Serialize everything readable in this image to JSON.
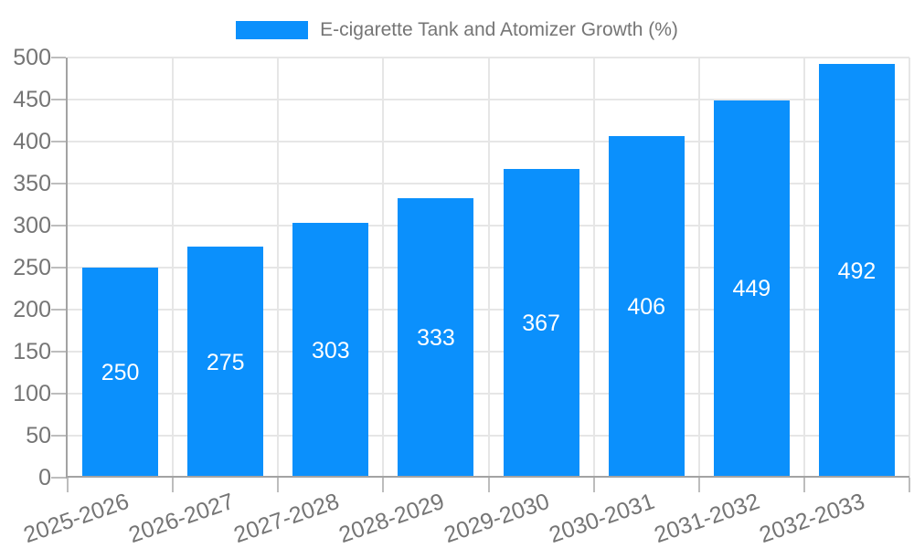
{
  "colors": {
    "bar": "#0B90FC",
    "grid": "#E6E6E6",
    "axis": "#A3A3A3",
    "tick": "#BDBDBD",
    "tick_label_text": "#757575",
    "legend_text": "#757575",
    "value_label_text": "#FFFFFF",
    "background": "#FFFFFF"
  },
  "chart_data": {
    "type": "bar",
    "title": "E-cigarette Tank and Atomizer Growth (%)",
    "legend_position": "top-center",
    "categories": [
      "2025-2026",
      "2026-2027",
      "2027-2028",
      "2028-2029",
      "2029-2030",
      "2030-2031",
      "2031-2032",
      "2032-2033"
    ],
    "series": [
      {
        "name": "E-cigarette Tank and Atomizer Growth (%)",
        "values": [
          250,
          275,
          303,
          333,
          367,
          406,
          449,
          492
        ]
      }
    ],
    "value_labels_shown": true,
    "xlabel": "",
    "ylabel": "",
    "ylim": [
      0,
      500
    ],
    "ytick_step": 50,
    "ytick_labels": [
      "0",
      "50",
      "100",
      "150",
      "200",
      "250",
      "300",
      "350",
      "400",
      "450",
      "500"
    ],
    "grid": true,
    "x_label_rotation_deg": -19
  }
}
